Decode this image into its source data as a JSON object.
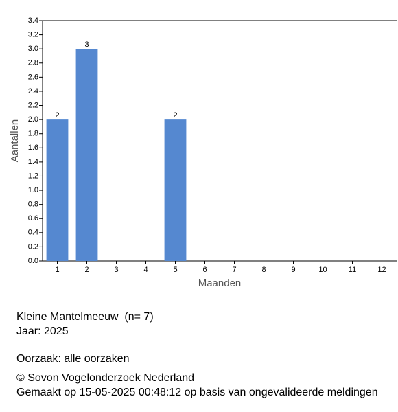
{
  "chart_data": {
    "type": "bar",
    "x_label": "Maanden",
    "y_label": "Aantallen",
    "categories": [
      "1",
      "2",
      "3",
      "4",
      "5",
      "6",
      "7",
      "8",
      "9",
      "10",
      "11",
      "12"
    ],
    "values": [
      2,
      3,
      0,
      0,
      2,
      0,
      0,
      0,
      0,
      0,
      0,
      0
    ],
    "color": "#5588d0",
    "ylim": [
      0,
      3.4
    ],
    "yticks": [
      {
        "value": 0,
        "label": "0.0"
      },
      0.2,
      0.4,
      0.6,
      0.8,
      {
        "value": 1,
        "label": "1.0"
      },
      1.2,
      1.4,
      1.6,
      1.8,
      {
        "value": 2,
        "label": "2.0"
      },
      2.2,
      2.4,
      2.6,
      2.8,
      {
        "value": 3,
        "label": "3.0"
      },
      3.2,
      3.4
    ]
  },
  "caption": {
    "species": "Kleine Mantelmeeuw  (n= 7)",
    "year": "Jaar: 2025",
    "cause": "Oorzaak: alle oorzaken",
    "copyright": "© Sovon Vogelonderzoek Nederland",
    "made": "Gemaakt op 15-05-2025 00:48:12 op basis van ongevalideerde meldingen"
  }
}
